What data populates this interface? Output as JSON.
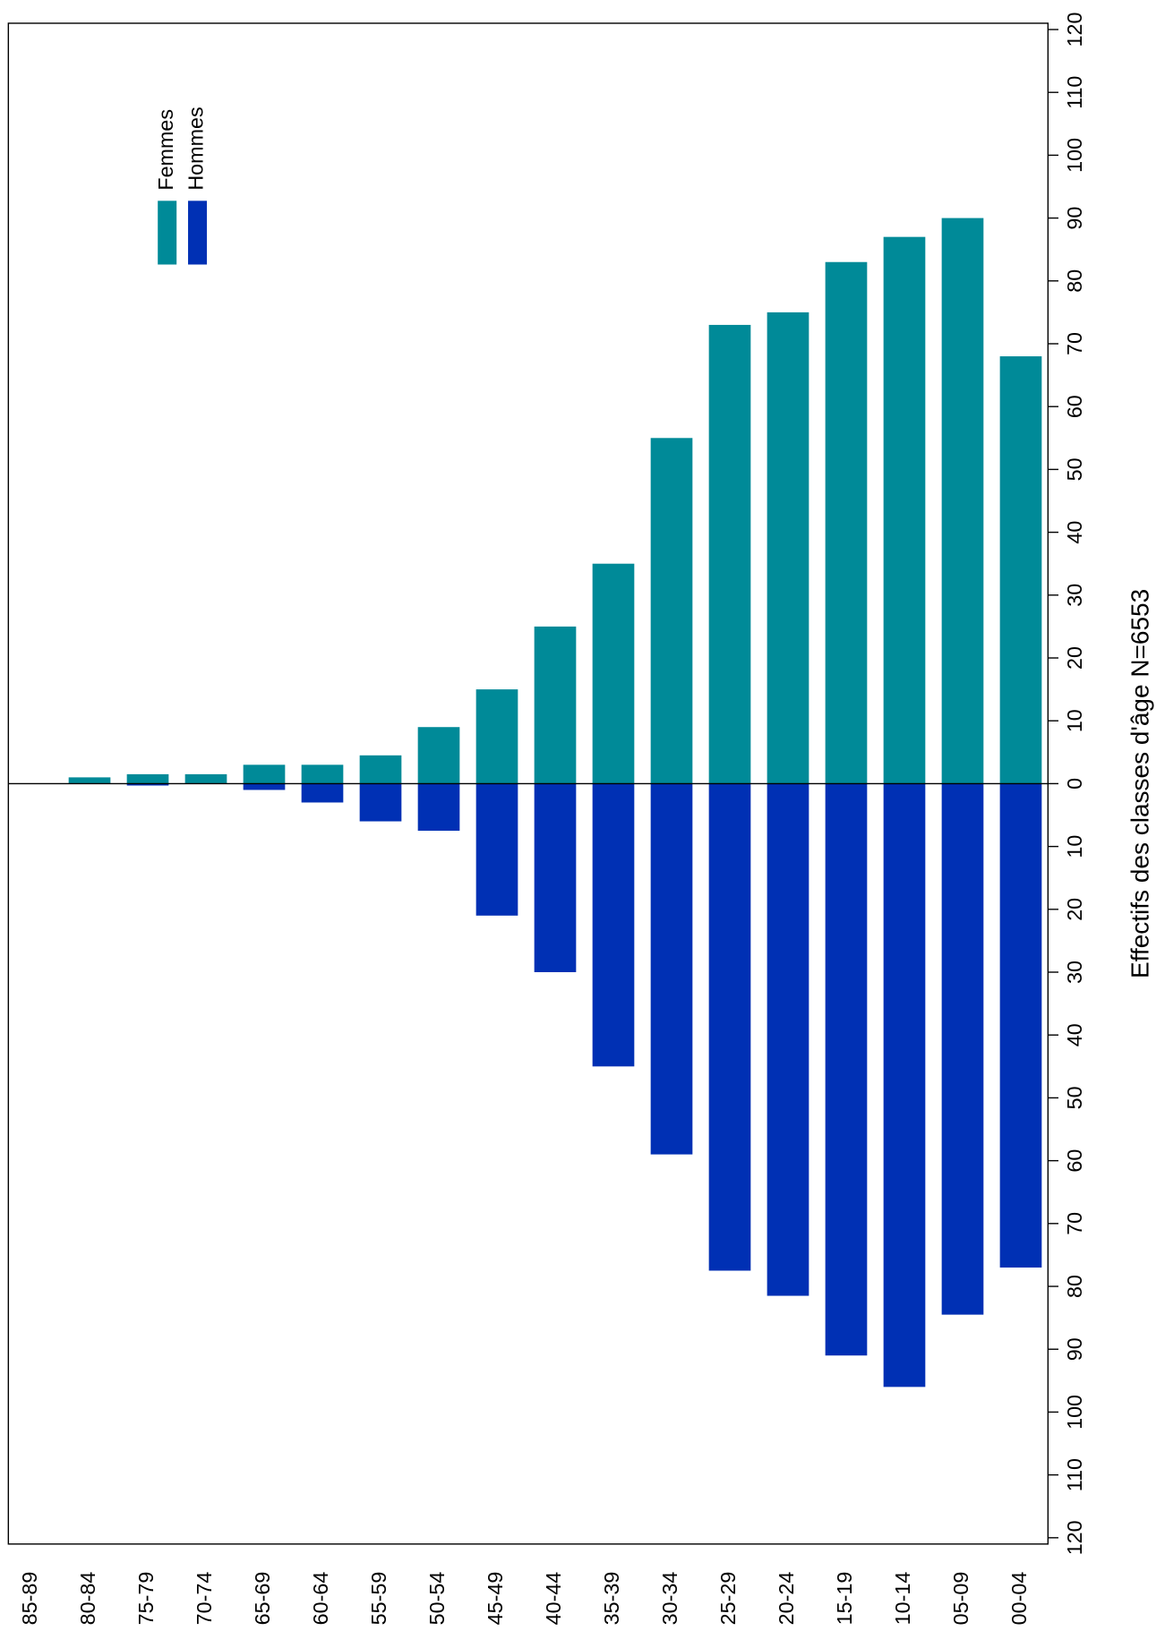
{
  "chart_data": {
    "type": "bar",
    "orientation": "rotated",
    "legend": "upper left",
    "xlabel": "Effectifs des classes d'âge N=6553",
    "categories": [
      "85-89",
      "80-84",
      "75-79",
      "70-74",
      "65-69",
      "60-64",
      "55-59",
      "50-54",
      "45-49",
      "40-44",
      "35-39",
      "30-34",
      "25-29",
      "20-24",
      "15-19",
      "10-14",
      "05-09",
      "00-04"
    ],
    "series": [
      {
        "name": "Femmes",
        "color": "#008a98",
        "values": [
          0,
          1,
          1.5,
          1.5,
          3,
          3,
          4.5,
          9,
          15,
          25,
          35,
          55,
          73,
          75,
          83,
          87,
          90,
          68
        ]
      },
      {
        "name": "Hommes",
        "color": "#0030b4",
        "values": [
          0,
          0,
          -0.3,
          0,
          -1,
          -3,
          -6,
          -7.5,
          -21,
          -30,
          -45,
          -59,
          -77.5,
          -81.5,
          -91,
          -96,
          -84.5,
          -77
        ]
      }
    ],
    "ylim": [
      -121,
      121
    ],
    "yticks": [
      {
        "value": -120,
        "label": "120"
      },
      {
        "value": -110,
        "label": "110"
      },
      {
        "value": -100,
        "label": "100"
      },
      {
        "value": -90,
        "label": "90"
      },
      {
        "value": -80,
        "label": "80"
      },
      {
        "value": -70,
        "label": "70"
      },
      {
        "value": -60,
        "label": "60"
      },
      {
        "value": -50,
        "label": "50"
      },
      {
        "value": -40,
        "label": "40"
      },
      {
        "value": -30,
        "label": "30"
      },
      {
        "value": -20,
        "label": "20"
      },
      {
        "value": -10,
        "label": "10"
      },
      0,
      10,
      20,
      30,
      40,
      50,
      60,
      70,
      80,
      90,
      100,
      110,
      120
    ]
  }
}
